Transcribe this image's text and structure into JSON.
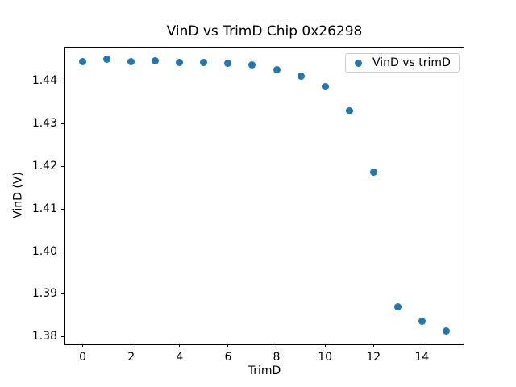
{
  "figure": {
    "background": "#ffffff"
  },
  "chart_data": {
    "type": "scatter",
    "title": "VinD vs TrimD Chip 0x26298",
    "xlabel": "TrimD",
    "ylabel": "VinD (V)",
    "grid": false,
    "legend_position": "upper right",
    "legend": [
      {
        "label": "VinD vs trimD",
        "marker": "circle",
        "color": "#1f77b4"
      }
    ],
    "marker_color": "#1f77b4",
    "xlim": [
      -0.75,
      15.75
    ],
    "ylim": [
      1.3782,
      1.4482
    ],
    "xticks": {
      "values": [
        0,
        2,
        4,
        6,
        8,
        10,
        12,
        14
      ],
      "labels": [
        "0",
        "2",
        "4",
        "6",
        "8",
        "10",
        "12",
        "14"
      ]
    },
    "yticks": {
      "values": [
        1.38,
        1.39,
        1.4,
        1.41,
        1.42,
        1.43,
        1.44
      ],
      "labels": [
        "1.38",
        "1.39",
        "1.40",
        "1.41",
        "1.42",
        "1.43",
        "1.44"
      ]
    },
    "series": [
      {
        "name": "VinD vs trimD",
        "color": "#1f77b4",
        "x": [
          0,
          1,
          2,
          3,
          4,
          5,
          6,
          7,
          8,
          9,
          10,
          11,
          12,
          13,
          14,
          15
        ],
        "y": [
          1.4446,
          1.4451,
          1.4446,
          1.4448,
          1.4444,
          1.4445,
          1.4443,
          1.4439,
          1.4427,
          1.4413,
          1.4388,
          1.433,
          1.4186,
          1.3871,
          1.3836,
          1.3814
        ]
      }
    ]
  }
}
